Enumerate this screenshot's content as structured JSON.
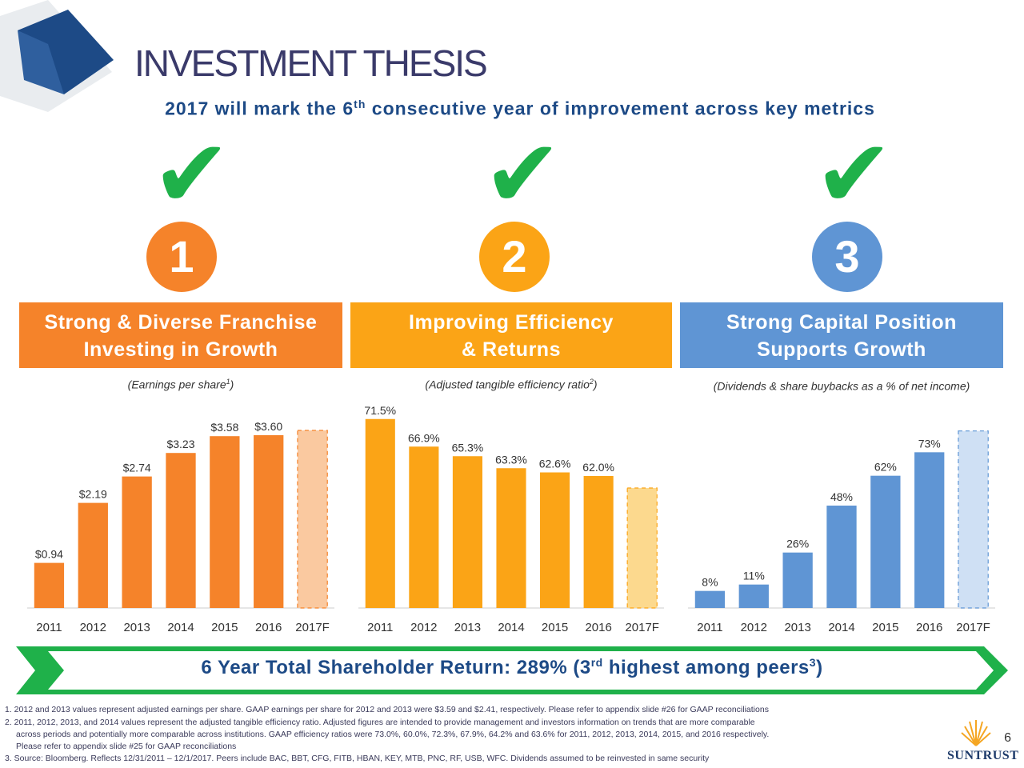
{
  "header": {
    "title": "INVESTMENT THESIS",
    "subtitle_pre": "2017 will mark the 6",
    "subtitle_sup": "th",
    "subtitle_post": " consecutive year of improvement across key metrics"
  },
  "colors": {
    "orange": "#f5832a",
    "amber": "#fba416",
    "blue": "#5f95d4",
    "green": "#1fb14a",
    "navy": "#1d4a86"
  },
  "pillars": [
    {
      "number": "1",
      "line1": "Strong & Diverse Franchise",
      "line2": "Investing in Growth",
      "caption": "(Earnings per share",
      "caption_sup": "1",
      "caption_end": ")"
    },
    {
      "number": "2",
      "line1": "Improving Efficiency",
      "line2": "& Returns",
      "caption": "(Adjusted tangible efficiency ratio",
      "caption_sup": "2",
      "caption_end": ")"
    },
    {
      "number": "3",
      "line1": "Strong Capital Position",
      "line2": "Supports Growth",
      "caption": "(Dividends & share buybacks as a % of net income)",
      "caption_sup": "",
      "caption_end": ""
    }
  ],
  "chart_data": [
    {
      "type": "bar",
      "categories": [
        "2011",
        "2012",
        "2013",
        "2014",
        "2015",
        "2016",
        "2017F"
      ],
      "values": [
        0.94,
        2.19,
        2.74,
        3.23,
        3.58,
        3.6,
        null
      ],
      "labels": [
        "$0.94",
        "$2.19",
        "$2.74",
        "$3.23",
        "$3.58",
        "$3.60",
        ""
      ],
      "forecast_index": 6,
      "forecast_value": 3.7,
      "ylim": [
        0,
        4.0
      ],
      "grid": false
    },
    {
      "type": "bar",
      "categories": [
        "2011",
        "2012",
        "2013",
        "2014",
        "2015",
        "2016",
        "2017F"
      ],
      "values": [
        71.5,
        66.9,
        65.3,
        63.3,
        62.6,
        62.0,
        null
      ],
      "labels": [
        "71.5%",
        "66.9%",
        "65.3%",
        "63.3%",
        "62.6%",
        "62.0%",
        ""
      ],
      "forecast_index": 6,
      "forecast_value": 60.0,
      "ylim": [
        40,
        72
      ],
      "grid": false
    },
    {
      "type": "bar",
      "categories": [
        "2011",
        "2012",
        "2013",
        "2014",
        "2015",
        "2016",
        "2017F"
      ],
      "values": [
        8,
        11,
        26,
        48,
        62,
        73,
        null
      ],
      "labels": [
        "8%",
        "11%",
        "26%",
        "48%",
        "62%",
        "73%",
        ""
      ],
      "forecast_index": 6,
      "forecast_value": 83,
      "ylim": [
        0,
        90
      ],
      "grid": false
    }
  ],
  "banner": {
    "pre": "6 Year Total Shareholder Return: 289% (3",
    "sup": "rd",
    "mid": " highest among peers",
    "sup2": "3",
    "end": ")"
  },
  "footnotes": [
    "1. 2012 and 2013 values represent adjusted earnings per share.  GAAP earnings per share for 2012 and 2013 were $3.59 and $2.41, respectively.  Please refer to appendix slide #26 for GAAP reconciliations",
    "2. 2011, 2012, 2013, and 2014 values represent the adjusted tangible efficiency ratio. Adjusted figures are intended to provide management and investors information on trends that are more comparable",
    "    across periods and potentially more comparable across institutions.  GAAP efficiency ratios were 73.0%, 60.0%, 72.3%, 67.9%, 64.2% and 63.6% for 2011, 2012, 2013, 2014, 2015, and 2016 respectively.",
    "    Please refer to appendix slide #25 for GAAP reconciliations",
    "3. Source: Bloomberg.  Reflects 12/31/2011 – 12/1/2017.  Peers include BAC, BBT, CFG, FITB, HBAN, KEY, MTB, PNC, RF, USB, WFC.  Dividends assumed to be reinvested in same security"
  ],
  "page_number": "6",
  "logo": {
    "text": "SUNTRUST",
    "icon": "sunburst-icon"
  }
}
